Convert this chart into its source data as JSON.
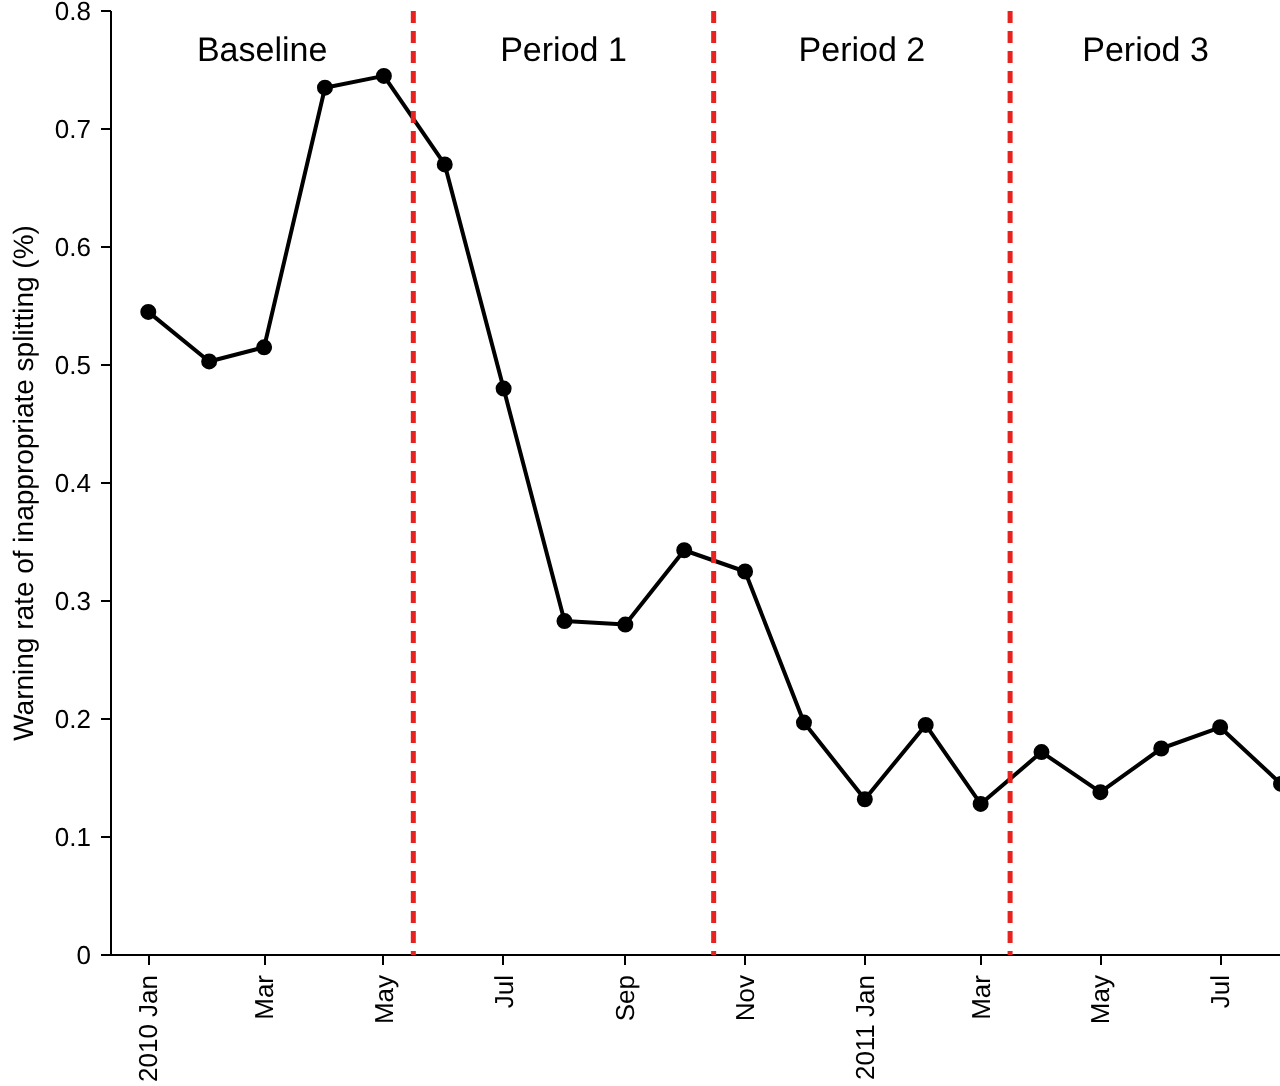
{
  "chart_data": {
    "type": "line",
    "ylabel": "Warning rate of inappropriate splitting (%)",
    "x": [
      "2010-01",
      "2010-02",
      "2010-03",
      "2010-04",
      "2010-05",
      "2010-06",
      "2010-07",
      "2010-08",
      "2010-09",
      "2010-10",
      "2010-11",
      "2010-12",
      "2011-01",
      "2011-02",
      "2011-03",
      "2011-04",
      "2011-05",
      "2011-06",
      "2011-07",
      "2011-08"
    ],
    "series": [
      {
        "color": "#000000",
        "values": [
          0.545,
          0.503,
          0.515,
          0.735,
          0.745,
          0.67,
          0.48,
          0.283,
          0.28,
          0.343,
          0.325,
          0.197,
          0.132,
          0.195,
          0.128,
          0.172,
          0.138,
          0.175,
          0.193,
          0.145
        ]
      }
    ],
    "xlim": [
      "2009-12-13",
      "2011-08-01"
    ],
    "xticks": [
      {
        "value": "2010-01",
        "label": "2010 Jan"
      },
      {
        "value": "2010-03",
        "label": "Mar"
      },
      {
        "value": "2010-05",
        "label": "May"
      },
      {
        "value": "2010-07",
        "label": "Jul"
      },
      {
        "value": "2010-09",
        "label": "Sep"
      },
      {
        "value": "2010-11",
        "label": "Nov"
      },
      {
        "value": "2011-01",
        "label": "2011 Jan"
      },
      {
        "value": "2011-03",
        "label": "Mar"
      },
      {
        "value": "2011-05",
        "label": "May"
      },
      {
        "value": "2011-07",
        "label": "Jul"
      }
    ],
    "ylim": [
      0,
      0.8
    ],
    "yticks": [
      0,
      0.1,
      0.2,
      0.3,
      0.4,
      0.5,
      0.6,
      0.7,
      0.8
    ],
    "ref_lines": [
      {
        "axis": "x",
        "value": "2010-05-16",
        "color": "#e8231f",
        "line_style": "dashed"
      },
      {
        "axis": "x",
        "value": "2010-10-16",
        "color": "#e8231f",
        "line_style": "dashed"
      },
      {
        "axis": "x",
        "value": "2011-03-16",
        "color": "#e8231f",
        "line_style": "dashed"
      }
    ],
    "annotations": [
      "Baseline",
      "Period 1",
      "Period 2",
      "Period 3"
    ],
    "marker": "circle",
    "line_style": "solid",
    "grid": false
  }
}
